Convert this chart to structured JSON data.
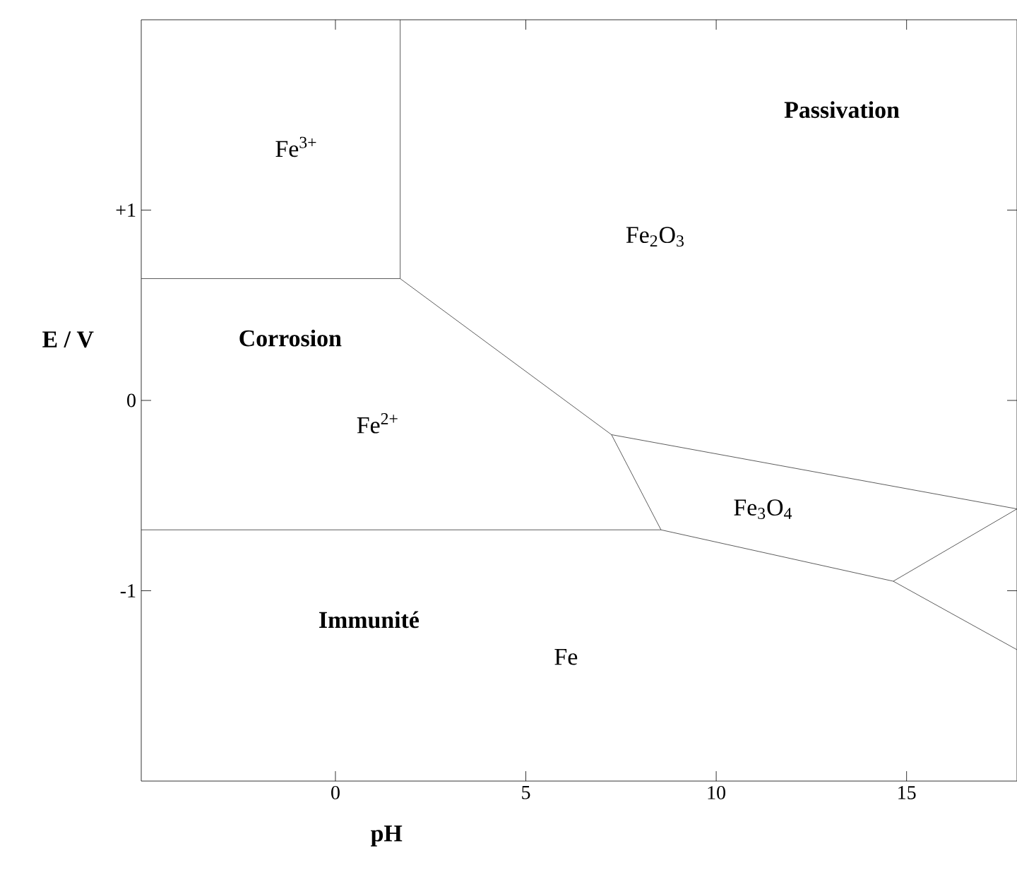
{
  "chart_data": {
    "type": "line",
    "xlabel": "pH",
    "ylabel": "E / V",
    "xlim": [
      -5.1,
      17.9
    ],
    "ylim": [
      -2,
      2
    ],
    "xticks": [
      0,
      5,
      10,
      15
    ],
    "yticks": [
      {
        "value": 1,
        "label": "+1"
      },
      0,
      -1
    ],
    "grid": false,
    "marker": "none",
    "line_style": "solid",
    "series": [
      {
        "color": "#333333",
        "x": [
          -5.1,
          1.7,
          1.7
        ],
        "values": [
          0.64,
          0.64,
          2
        ]
      },
      {
        "color": "#333333",
        "x": [
          1.7,
          7.25,
          8.55
        ],
        "values": [
          0.64,
          -0.18,
          -0.68
        ]
      },
      {
        "color": "#333333",
        "x": [
          -5.1,
          8.55,
          14.65,
          17.9
        ],
        "values": [
          -0.68,
          -0.68,
          -0.95,
          -1.31
        ]
      },
      {
        "color": "#333333",
        "x": [
          7.25,
          17.9,
          14.65
        ],
        "values": [
          -0.18,
          -0.57,
          -0.95
        ]
      }
    ],
    "annotations": [
      "Fe$^{3+}$",
      "Passivation",
      "Fe$_{2}$O$_{3}$",
      "Corrosion",
      "Fe$^{2+}$",
      "Fe$_{3}$O$_{4}$",
      "Immunité",
      "Fe"
    ]
  }
}
